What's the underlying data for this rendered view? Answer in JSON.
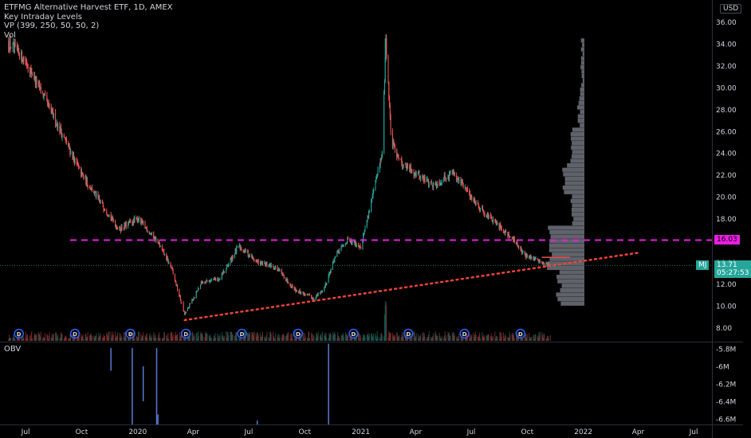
{
  "legend": {
    "title": "ETFMG Alternative Harvest ETF, 1D, AMEX",
    "indicator_1": "Key Intraday Levels",
    "indicator_2": "VP (399, 250, 50, 50, 2)",
    "indicator_3": "Vol"
  },
  "currency_badge": "USD",
  "obv_label": "OBV",
  "price_labels": {
    "level": "16.03",
    "symbol": "MJ",
    "last": "13.71",
    "countdown": "05:27:53"
  },
  "colors": {
    "background": "#000000",
    "up": "#26a69a",
    "down": "#ef5350",
    "level_line": "#e91ee3",
    "trendline": "#f44336",
    "volume_profile": "#787b86",
    "obv": "#5b7ad6",
    "dividend_marker": "#2962ff",
    "axis_text": "#d1d4dc"
  },
  "chart_data": {
    "type": "candlestick",
    "y_axis": {
      "ticks": [
        "8.00",
        "10.00",
        "12.00",
        "14.00",
        "16.00",
        "18.00",
        "20.00",
        "22.00",
        "24.00",
        "26.00",
        "28.00",
        "30.00",
        "32.00",
        "34.00",
        "36.00"
      ],
      "ylim": [
        6.8,
        37.0
      ]
    },
    "x_axis": {
      "ticks": [
        "Jul",
        "Oct",
        "2020",
        "Apr",
        "Jul",
        "Oct",
        "2021",
        "Apr",
        "Jul",
        "Oct",
        "2022",
        "Apr",
        "Jul"
      ],
      "range": [
        "2019-05-20",
        "2022-07-31"
      ]
    },
    "price_path": [
      {
        "date": "2019-06-01",
        "close": 34.2
      },
      {
        "date": "2019-07-01",
        "close": 32.5
      },
      {
        "date": "2019-08-01",
        "close": 29.0
      },
      {
        "date": "2019-09-01",
        "close": 25.5
      },
      {
        "date": "2019-10-01",
        "close": 22.0
      },
      {
        "date": "2019-11-01",
        "close": 19.5
      },
      {
        "date": "2019-12-01",
        "close": 17.0
      },
      {
        "date": "2020-01-01",
        "close": 18.0
      },
      {
        "date": "2020-02-01",
        "close": 16.0
      },
      {
        "date": "2020-02-25",
        "close": 13.5
      },
      {
        "date": "2020-03-18",
        "close": 9.2
      },
      {
        "date": "2020-04-15",
        "close": 12.2
      },
      {
        "date": "2020-05-15",
        "close": 12.5
      },
      {
        "date": "2020-06-15",
        "close": 15.5
      },
      {
        "date": "2020-07-15",
        "close": 14.0
      },
      {
        "date": "2020-08-15",
        "close": 13.5
      },
      {
        "date": "2020-09-15",
        "close": 11.5
      },
      {
        "date": "2020-10-15",
        "close": 10.7
      },
      {
        "date": "2020-11-01",
        "close": 11.5
      },
      {
        "date": "2020-11-20",
        "close": 14.5
      },
      {
        "date": "2020-12-10",
        "close": 16.0
      },
      {
        "date": "2021-01-01",
        "close": 15.5
      },
      {
        "date": "2021-01-20",
        "close": 20.0
      },
      {
        "date": "2021-02-05",
        "close": 24.0
      },
      {
        "date": "2021-02-11",
        "close": 34.5
      },
      {
        "date": "2021-02-20",
        "close": 25.0
      },
      {
        "date": "2021-03-10",
        "close": 23.0
      },
      {
        "date": "2021-04-05",
        "close": 22.0
      },
      {
        "date": "2021-05-01",
        "close": 21.0
      },
      {
        "date": "2021-06-01",
        "close": 22.3
      },
      {
        "date": "2021-07-01",
        "close": 20.0
      },
      {
        "date": "2021-08-01",
        "close": 18.0
      },
      {
        "date": "2021-09-01",
        "close": 16.5
      },
      {
        "date": "2021-10-01",
        "close": 14.5
      },
      {
        "date": "2021-11-08",
        "close": 13.71
      }
    ],
    "levels": [
      {
        "label": "16.03",
        "value": 16.03
      }
    ],
    "trendline": {
      "start": {
        "date": "2020-03-18",
        "value": 8.7
      },
      "end": {
        "date": "2022-04-05",
        "value": 14.9
      }
    },
    "dividends": [
      "2019-06-20",
      "2019-09-20",
      "2019-12-20",
      "2020-03-20",
      "2020-06-20",
      "2020-09-20",
      "2020-12-20",
      "2021-03-20",
      "2021-06-20",
      "2021-09-20"
    ],
    "obv": {
      "ticks": [
        "-5.8M",
        "-6M",
        "-6.2M",
        "-6.4M",
        "-6.6M"
      ],
      "ylim": [
        -6.665,
        -5.735
      ]
    },
    "volume_profile_range": [
      10.0,
      34.5
    ]
  }
}
